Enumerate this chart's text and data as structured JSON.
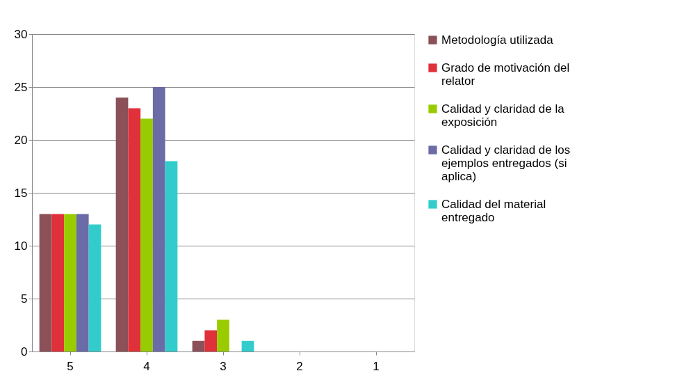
{
  "chart_data": {
    "type": "bar",
    "categories": [
      "5",
      "4",
      "3",
      "2",
      "1"
    ],
    "series": [
      {
        "name": "Metodología utilizada",
        "color": "#8c5058",
        "values": [
          13,
          24,
          1,
          0,
          0
        ]
      },
      {
        "name": "Grado de motivación del relator",
        "color": "#e0303a",
        "values": [
          13,
          23,
          2,
          0,
          0
        ]
      },
      {
        "name": "Calidad y claridad de la exposición",
        "color": "#99cc00",
        "values": [
          13,
          22,
          3,
          0,
          0
        ]
      },
      {
        "name": "Calidad y claridad de los ejemplos entregados (si aplica)",
        "color": "#6b6ba8",
        "values": [
          13,
          25,
          0,
          0,
          0
        ]
      },
      {
        "name": "Calidad del material  entregado",
        "color": "#33cccc",
        "values": [
          12,
          18,
          1,
          0,
          0
        ]
      }
    ],
    "ylim": [
      0,
      30
    ],
    "yticks": [
      0,
      5,
      10,
      15,
      20,
      25,
      30
    ],
    "grid": "y",
    "legend": "right"
  }
}
